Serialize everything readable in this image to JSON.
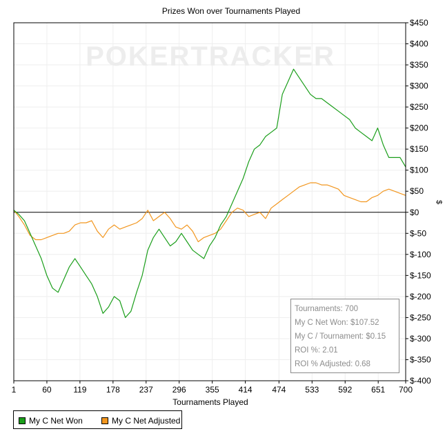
{
  "chart_data": {
    "type": "line",
    "title": "Prizes Won over Tournaments Played",
    "xlabel": "Tournaments Played",
    "ylabel": "$",
    "watermark": "POKERTRACKER",
    "xlim": [
      1,
      700
    ],
    "ylim": [
      -400,
      450
    ],
    "x_ticks": [
      "1",
      "60",
      "119",
      "178",
      "237",
      "296",
      "355",
      "414",
      "474",
      "533",
      "592",
      "651",
      "700"
    ],
    "y_ticks": [
      "$450",
      "$400",
      "$350",
      "$300",
      "$250",
      "$200",
      "$150",
      "$100",
      "$50",
      "$0",
      "$-50",
      "$-100",
      "$-150",
      "$-200",
      "$-250",
      "$-300",
      "$-350",
      "$-400"
    ],
    "grid": true,
    "legend_position": "bottom-left",
    "series": [
      {
        "name": "My C Net Won",
        "color": "#1a9e1a",
        "x": [
          1,
          10,
          20,
          30,
          40,
          50,
          60,
          70,
          80,
          90,
          100,
          110,
          120,
          130,
          140,
          150,
          160,
          170,
          180,
          190,
          200,
          210,
          220,
          230,
          240,
          250,
          260,
          270,
          280,
          290,
          300,
          310,
          320,
          330,
          340,
          350,
          360,
          370,
          380,
          390,
          400,
          410,
          420,
          430,
          440,
          450,
          460,
          470,
          480,
          490,
          500,
          510,
          520,
          530,
          540,
          550,
          560,
          570,
          580,
          590,
          600,
          610,
          620,
          630,
          640,
          650,
          660,
          670,
          680,
          690,
          700
        ],
        "y": [
          5,
          -5,
          -20,
          -50,
          -80,
          -110,
          -150,
          -180,
          -190,
          -160,
          -130,
          -110,
          -130,
          -150,
          -170,
          -200,
          -240,
          -225,
          -200,
          -210,
          -250,
          -235,
          -190,
          -150,
          -90,
          -60,
          -40,
          -60,
          -80,
          -70,
          -50,
          -70,
          -90,
          -100,
          -110,
          -80,
          -60,
          -30,
          -10,
          20,
          50,
          80,
          120,
          150,
          160,
          180,
          190,
          200,
          280,
          310,
          340,
          320,
          300,
          280,
          270,
          270,
          260,
          250,
          240,
          230,
          220,
          200,
          190,
          180,
          170,
          200,
          160,
          130,
          130,
          130,
          107.52
        ]
      },
      {
        "name": "My C Net Adjusted",
        "color": "#f2961e",
        "x": [
          1,
          10,
          20,
          30,
          40,
          50,
          60,
          70,
          80,
          90,
          100,
          110,
          120,
          130,
          140,
          150,
          160,
          170,
          180,
          190,
          200,
          210,
          220,
          230,
          240,
          250,
          260,
          270,
          280,
          290,
          300,
          310,
          320,
          330,
          340,
          350,
          360,
          370,
          380,
          390,
          400,
          410,
          420,
          430,
          440,
          450,
          460,
          470,
          480,
          490,
          500,
          510,
          520,
          530,
          540,
          550,
          560,
          570,
          580,
          590,
          600,
          610,
          620,
          630,
          640,
          650,
          660,
          670,
          680,
          690,
          700
        ],
        "y": [
          5,
          -10,
          -30,
          -55,
          -65,
          -65,
          -60,
          -55,
          -50,
          -50,
          -45,
          -30,
          -25,
          -25,
          -20,
          -45,
          -60,
          -40,
          -30,
          -40,
          -35,
          -30,
          -25,
          -15,
          5,
          -20,
          -10,
          0,
          -15,
          -35,
          -40,
          -30,
          -45,
          -70,
          -60,
          -55,
          -50,
          -40,
          -20,
          0,
          10,
          5,
          -10,
          -5,
          0,
          -15,
          10,
          20,
          30,
          40,
          50,
          60,
          65,
          70,
          70,
          65,
          65,
          60,
          55,
          40,
          35,
          30,
          25,
          25,
          35,
          40,
          50,
          55,
          50,
          45,
          40
        ]
      }
    ],
    "stats": [
      "Tournaments: 700",
      "My C Net Won: $107.52",
      "My C / Tournament: $0.15",
      "ROI %: 2.01",
      "ROI % Adjusted: 0.68"
    ]
  }
}
